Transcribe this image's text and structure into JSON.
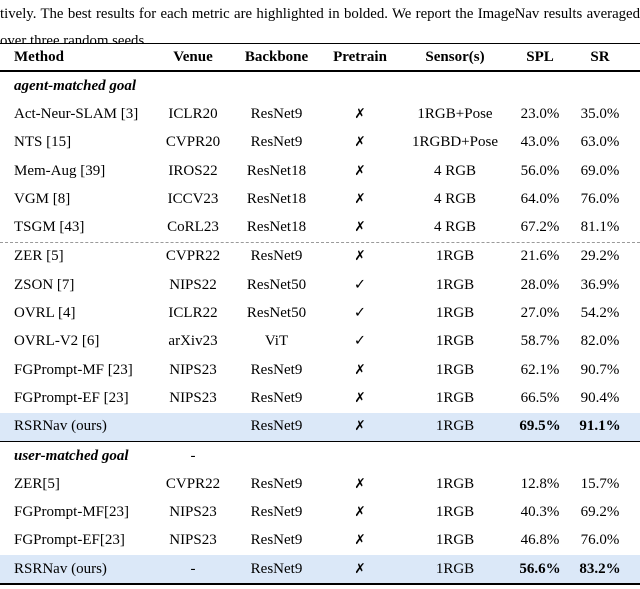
{
  "caption": {
    "line1": "tively. The best results for each metric are highlighted in bolded. We report the ImageNav results averaged",
    "line2": "over three random seeds."
  },
  "colors": {
    "highlight_row": "#dbe8f8",
    "rule": "#000000",
    "dashed_divider": "#9a9a9a"
  },
  "icons": {
    "cross": "✗",
    "check": "✓"
  },
  "table": {
    "columns": [
      "Method",
      "Venue",
      "Backbone",
      "Pretrain",
      "Sensor(s)",
      "SPL",
      "SR"
    ],
    "sections": [
      {
        "title": "agent-matched goal",
        "venue_note": "",
        "rows": [
          {
            "method": "Act-Neur-SLAM [3]",
            "venue": "ICLR20",
            "backbone": "ResNet9",
            "pretrain": "cross",
            "sensors": "1RGB+Pose",
            "spl": "23.0%",
            "sr": "35.0%",
            "highlight": false,
            "bold_metrics": false,
            "dashed_top": false
          },
          {
            "method": "NTS [15]",
            "venue": "CVPR20",
            "backbone": "ResNet9",
            "pretrain": "cross",
            "sensors": "1RGBD+Pose",
            "spl": "43.0%",
            "sr": "63.0%",
            "highlight": false,
            "bold_metrics": false,
            "dashed_top": false
          },
          {
            "method": "Mem-Aug [39]",
            "venue": "IROS22",
            "backbone": "ResNet18",
            "pretrain": "cross",
            "sensors": "4 RGB",
            "spl": "56.0%",
            "sr": "69.0%",
            "highlight": false,
            "bold_metrics": false,
            "dashed_top": false
          },
          {
            "method": "VGM [8]",
            "venue": "ICCV23",
            "backbone": "ResNet18",
            "pretrain": "cross",
            "sensors": "4 RGB",
            "spl": "64.0%",
            "sr": "76.0%",
            "highlight": false,
            "bold_metrics": false,
            "dashed_top": false
          },
          {
            "method": "TSGM [43]",
            "venue": "CoRL23",
            "backbone": "ResNet18",
            "pretrain": "cross",
            "sensors": "4 RGB",
            "spl": "67.2%",
            "sr": "81.1%",
            "highlight": false,
            "bold_metrics": false,
            "dashed_top": false
          },
          {
            "method": "ZER [5]",
            "venue": "CVPR22",
            "backbone": "ResNet9",
            "pretrain": "cross",
            "sensors": "1RGB",
            "spl": "21.6%",
            "sr": "29.2%",
            "highlight": false,
            "bold_metrics": false,
            "dashed_top": true
          },
          {
            "method": "ZSON [7]",
            "venue": "NIPS22",
            "backbone": "ResNet50",
            "pretrain": "check",
            "sensors": "1RGB",
            "spl": "28.0%",
            "sr": "36.9%",
            "highlight": false,
            "bold_metrics": false,
            "dashed_top": false
          },
          {
            "method": "OVRL [4]",
            "venue": "ICLR22",
            "backbone": "ResNet50",
            "pretrain": "check",
            "sensors": "1RGB",
            "spl": "27.0%",
            "sr": "54.2%",
            "highlight": false,
            "bold_metrics": false,
            "dashed_top": false
          },
          {
            "method": "OVRL-V2 [6]",
            "venue": "arXiv23",
            "backbone": "ViT",
            "pretrain": "check",
            "sensors": "1RGB",
            "spl": "58.7%",
            "sr": "82.0%",
            "highlight": false,
            "bold_metrics": false,
            "dashed_top": false
          },
          {
            "method": "FGPrompt-MF [23]",
            "venue": "NIPS23",
            "backbone": "ResNet9",
            "pretrain": "cross",
            "sensors": "1RGB",
            "spl": "62.1%",
            "sr": "90.7%",
            "highlight": false,
            "bold_metrics": false,
            "dashed_top": false
          },
          {
            "method": "FGPrompt-EF [23]",
            "venue": "NIPS23",
            "backbone": "ResNet9",
            "pretrain": "cross",
            "sensors": "1RGB",
            "spl": "66.5%",
            "sr": "90.4%",
            "highlight": false,
            "bold_metrics": false,
            "dashed_top": false
          },
          {
            "method": "RSRNav (ours)",
            "venue": "",
            "backbone": "ResNet9",
            "pretrain": "cross",
            "sensors": "1RGB",
            "spl": "69.5%",
            "sr": "91.1%",
            "highlight": true,
            "bold_metrics": true,
            "dashed_top": false
          }
        ]
      },
      {
        "title": "user-matched goal",
        "venue_note": "-",
        "rows": [
          {
            "method": "ZER[5]",
            "venue": "CVPR22",
            "backbone": "ResNet9",
            "pretrain": "cross",
            "sensors": "1RGB",
            "spl": "12.8%",
            "sr": "15.7%",
            "highlight": false,
            "bold_metrics": false,
            "dashed_top": false
          },
          {
            "method": "FGPrompt-MF[23]",
            "venue": "NIPS23",
            "backbone": "ResNet9",
            "pretrain": "cross",
            "sensors": "1RGB",
            "spl": "40.3%",
            "sr": "69.2%",
            "highlight": false,
            "bold_metrics": false,
            "dashed_top": false
          },
          {
            "method": "FGPrompt-EF[23]",
            "venue": "NIPS23",
            "backbone": "ResNet9",
            "pretrain": "cross",
            "sensors": "1RGB",
            "spl": "46.8%",
            "sr": "76.0%",
            "highlight": false,
            "bold_metrics": false,
            "dashed_top": false
          },
          {
            "method": "RSRNav (ours)",
            "venue": "-",
            "backbone": "ResNet9",
            "pretrain": "cross",
            "sensors": "1RGB",
            "spl": "56.6%",
            "sr": "83.2%",
            "highlight": true,
            "bold_metrics": true,
            "dashed_top": false
          }
        ]
      }
    ]
  }
}
